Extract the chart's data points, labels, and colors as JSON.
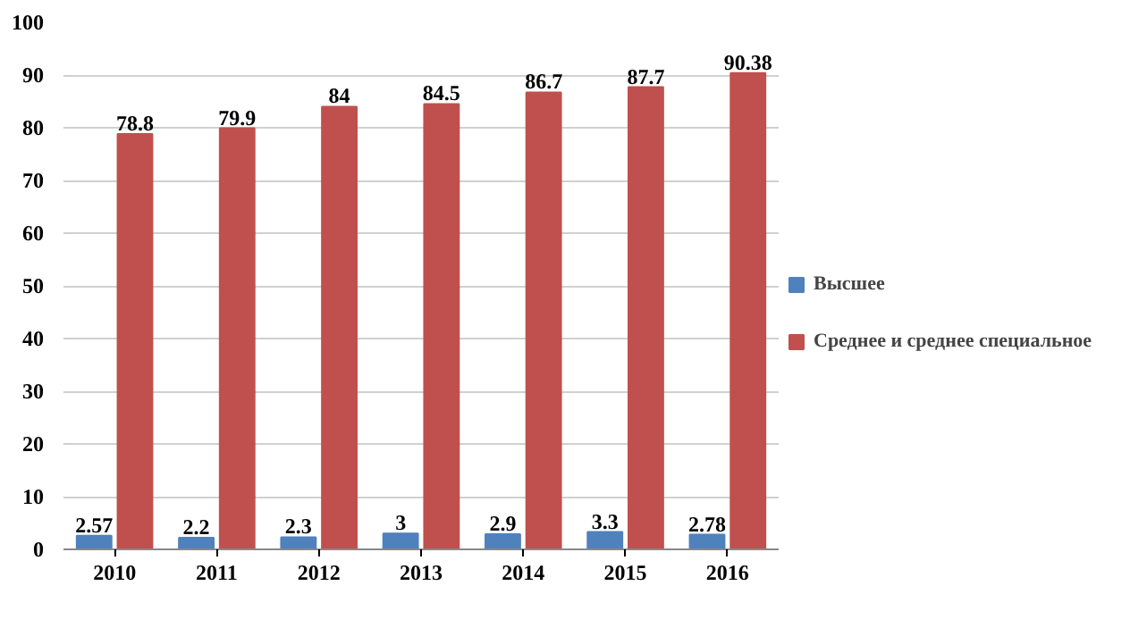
{
  "chart_data": {
    "type": "bar",
    "categories": [
      "2010",
      "2011",
      "2012",
      "2013",
      "2014",
      "2015",
      "2016"
    ],
    "series": [
      {
        "name": "Высшее",
        "color": "#4f81bd",
        "values": [
          2.57,
          2.2,
          2.3,
          3,
          2.9,
          3.3,
          2.78
        ]
      },
      {
        "name": "Среднее и среднее специальное",
        "color": "#c0504d",
        "values": [
          78.8,
          79.9,
          84,
          84.5,
          86.7,
          87.7,
          90.38
        ]
      }
    ],
    "ylim": [
      0,
      100
    ],
    "yticks": [
      0,
      10,
      20,
      30,
      40,
      50,
      60,
      70,
      80,
      90,
      100
    ],
    "grid": "y",
    "legend": "right",
    "data_labels": true
  }
}
